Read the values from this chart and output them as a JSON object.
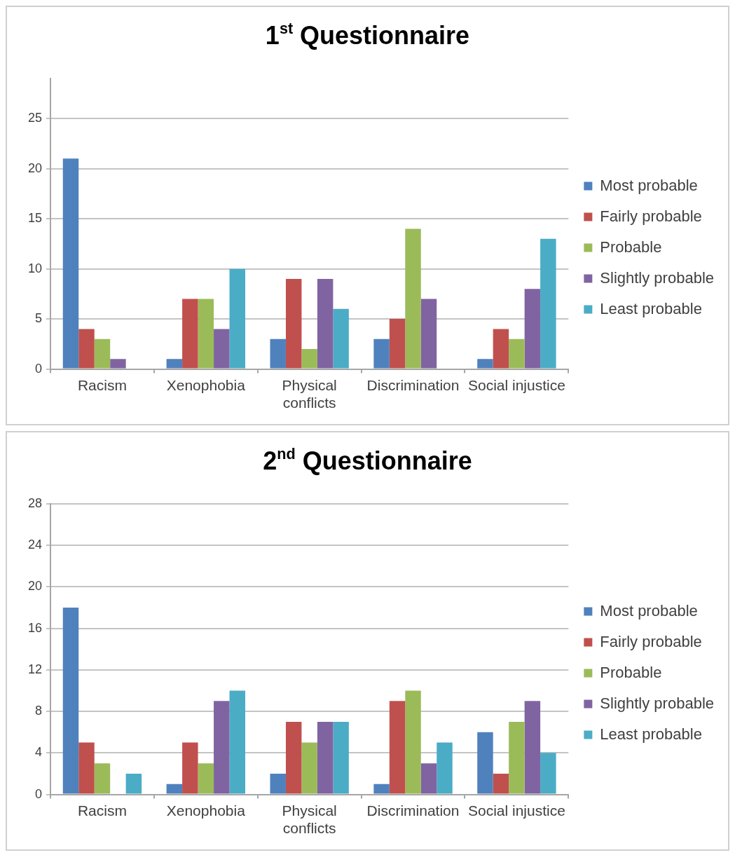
{
  "chart_data": [
    {
      "type": "bar",
      "title": "1$^{st}$ Questionnaire",
      "categories": [
        "Racism",
        "Xenophobia",
        "Physical conflicts",
        "Discrimination",
        "Social injustice"
      ],
      "series": [
        {
          "name": "Most probable",
          "color": "#4f81bd",
          "values": [
            21,
            1,
            3,
            3,
            1
          ]
        },
        {
          "name": "Fairly probable",
          "color": "#c0504d",
          "values": [
            4,
            7,
            9,
            5,
            4
          ]
        },
        {
          "name": "Probable",
          "color": "#9bbb59",
          "values": [
            3,
            7,
            2,
            14,
            3
          ]
        },
        {
          "name": "Slightly probable",
          "color": "#8064a2",
          "values": [
            1,
            4,
            9,
            7,
            8
          ]
        },
        {
          "name": "Least probable",
          "color": "#4bacc6",
          "values": [
            0,
            10,
            6,
            0,
            13
          ]
        }
      ],
      "ylim": [
        0,
        29
      ],
      "yticks": [
        0,
        5,
        10,
        15,
        20,
        25
      ],
      "grid": "y",
      "legend": "right"
    },
    {
      "type": "bar",
      "title": "2$^{nd}$ Questionnaire",
      "categories": [
        "Racism",
        "Xenophobia",
        "Physical conflicts",
        "Discrimination",
        "Social injustice"
      ],
      "series": [
        {
          "name": "Most probable",
          "color": "#4f81bd",
          "values": [
            18,
            1,
            2,
            1,
            6
          ]
        },
        {
          "name": "Fairly probable",
          "color": "#c0504d",
          "values": [
            5,
            5,
            7,
            9,
            2
          ]
        },
        {
          "name": "Probable",
          "color": "#9bbb59",
          "values": [
            3,
            3,
            5,
            10,
            7
          ]
        },
        {
          "name": "Slightly probable",
          "color": "#8064a2",
          "values": [
            0,
            9,
            7,
            3,
            9
          ]
        },
        {
          "name": "Least probable",
          "color": "#4bacc6",
          "values": [
            2,
            10,
            7,
            5,
            4
          ]
        }
      ],
      "ylim": [
        0,
        28
      ],
      "yticks": [
        0,
        4,
        8,
        12,
        16,
        20,
        24,
        28
      ],
      "grid": "y",
      "legend": "right"
    }
  ]
}
